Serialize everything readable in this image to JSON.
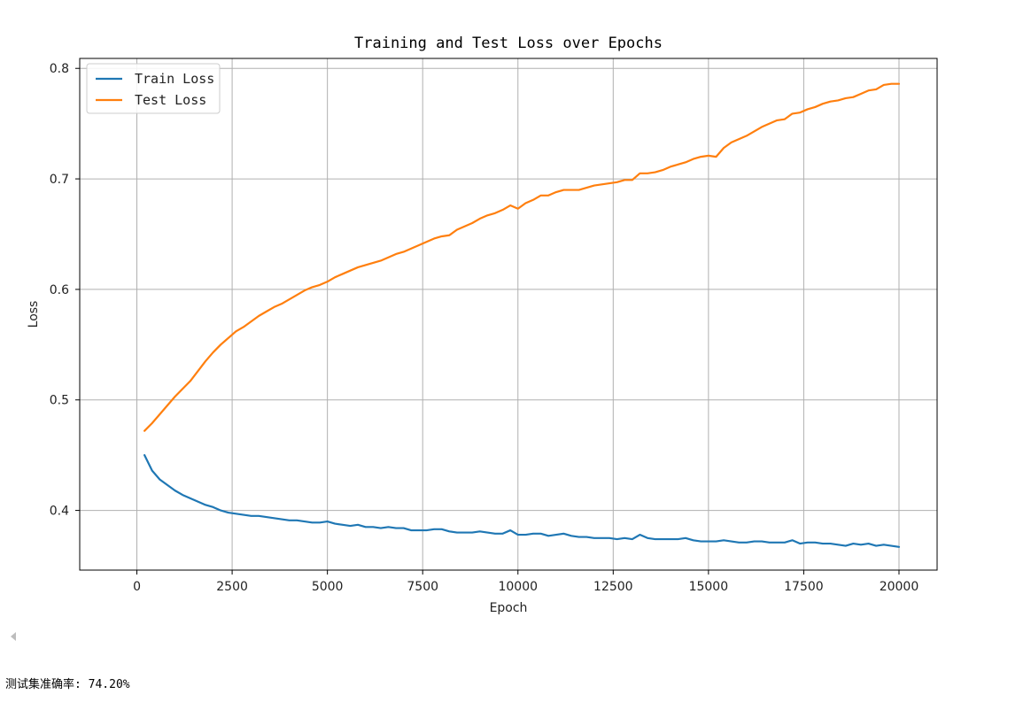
{
  "chart_data": {
    "type": "line",
    "title": "Training and Test Loss over Epochs",
    "xlabel": "Epoch",
    "ylabel": "Loss",
    "xlim": [
      -1500,
      21000
    ],
    "ylim": [
      0.346,
      0.809
    ],
    "xticks": [
      0,
      2500,
      5000,
      7500,
      10000,
      12500,
      15000,
      17500,
      20000
    ],
    "yticks": [
      0.4,
      0.5,
      0.6,
      0.7,
      0.8
    ],
    "ytick_labels": [
      "0.4",
      "0.5",
      "0.6",
      "0.7",
      "0.8"
    ],
    "grid": true,
    "legend_position": "top-left",
    "x": [
      200,
      400,
      600,
      800,
      1000,
      1200,
      1400,
      1600,
      1800,
      2000,
      2200,
      2400,
      2600,
      2800,
      3000,
      3200,
      3400,
      3600,
      3800,
      4000,
      4200,
      4400,
      4600,
      4800,
      5000,
      5200,
      5400,
      5600,
      5800,
      6000,
      6200,
      6400,
      6600,
      6800,
      7000,
      7200,
      7400,
      7600,
      7800,
      8000,
      8200,
      8400,
      8600,
      8800,
      9000,
      9200,
      9400,
      9600,
      9800,
      10000,
      10200,
      10400,
      10600,
      10800,
      11000,
      11200,
      11400,
      11600,
      11800,
      12000,
      12200,
      12400,
      12600,
      12800,
      13000,
      13200,
      13400,
      13600,
      13800,
      14000,
      14200,
      14400,
      14600,
      14800,
      15000,
      15200,
      15400,
      15600,
      15800,
      16000,
      16200,
      16400,
      16600,
      16800,
      17000,
      17200,
      17400,
      17600,
      17800,
      18000,
      18200,
      18400,
      18600,
      18800,
      19000,
      19200,
      19400,
      19600,
      19800,
      20000
    ],
    "series": [
      {
        "name": "Train Loss",
        "color": "#1f77b4",
        "values": [
          0.45,
          0.436,
          0.428,
          0.423,
          0.418,
          0.414,
          0.411,
          0.408,
          0.405,
          0.403,
          0.4,
          0.398,
          0.397,
          0.396,
          0.395,
          0.395,
          0.394,
          0.393,
          0.392,
          0.391,
          0.391,
          0.39,
          0.389,
          0.389,
          0.39,
          0.388,
          0.387,
          0.386,
          0.387,
          0.385,
          0.385,
          0.384,
          0.385,
          0.384,
          0.384,
          0.382,
          0.382,
          0.382,
          0.383,
          0.383,
          0.381,
          0.38,
          0.38,
          0.38,
          0.381,
          0.38,
          0.379,
          0.379,
          0.382,
          0.378,
          0.378,
          0.379,
          0.379,
          0.377,
          0.378,
          0.379,
          0.377,
          0.376,
          0.376,
          0.375,
          0.375,
          0.375,
          0.374,
          0.375,
          0.374,
          0.378,
          0.375,
          0.374,
          0.374,
          0.374,
          0.374,
          0.375,
          0.373,
          0.372,
          0.372,
          0.372,
          0.373,
          0.372,
          0.371,
          0.371,
          0.372,
          0.372,
          0.371,
          0.371,
          0.371,
          0.373,
          0.37,
          0.371,
          0.371,
          0.37,
          0.37,
          0.369,
          0.368,
          0.37,
          0.369,
          0.37,
          0.368,
          0.369,
          0.368,
          0.367
        ]
      },
      {
        "name": "Test Loss",
        "color": "#ff7f0e",
        "values": [
          0.472,
          0.479,
          0.487,
          0.495,
          0.503,
          0.51,
          0.517,
          0.526,
          0.535,
          0.543,
          0.55,
          0.556,
          0.562,
          0.566,
          0.571,
          0.576,
          0.58,
          0.584,
          0.587,
          0.591,
          0.595,
          0.599,
          0.602,
          0.604,
          0.607,
          0.611,
          0.614,
          0.617,
          0.62,
          0.622,
          0.624,
          0.626,
          0.629,
          0.632,
          0.634,
          0.637,
          0.64,
          0.643,
          0.646,
          0.648,
          0.649,
          0.654,
          0.657,
          0.66,
          0.664,
          0.667,
          0.669,
          0.672,
          0.676,
          0.673,
          0.678,
          0.681,
          0.685,
          0.685,
          0.688,
          0.69,
          0.69,
          0.69,
          0.692,
          0.694,
          0.695,
          0.696,
          0.697,
          0.699,
          0.699,
          0.705,
          0.705,
          0.706,
          0.708,
          0.711,
          0.713,
          0.715,
          0.718,
          0.72,
          0.721,
          0.72,
          0.728,
          0.733,
          0.736,
          0.739,
          0.743,
          0.747,
          0.75,
          0.753,
          0.754,
          0.759,
          0.76,
          0.763,
          0.765,
          0.768,
          0.77,
          0.771,
          0.773,
          0.774,
          0.777,
          0.78,
          0.781,
          0.785,
          0.786,
          0.786
        ]
      }
    ]
  },
  "scroll": {
    "icon": "chevron-left-icon"
  },
  "output_text": "测试集准确率: 74.20%"
}
